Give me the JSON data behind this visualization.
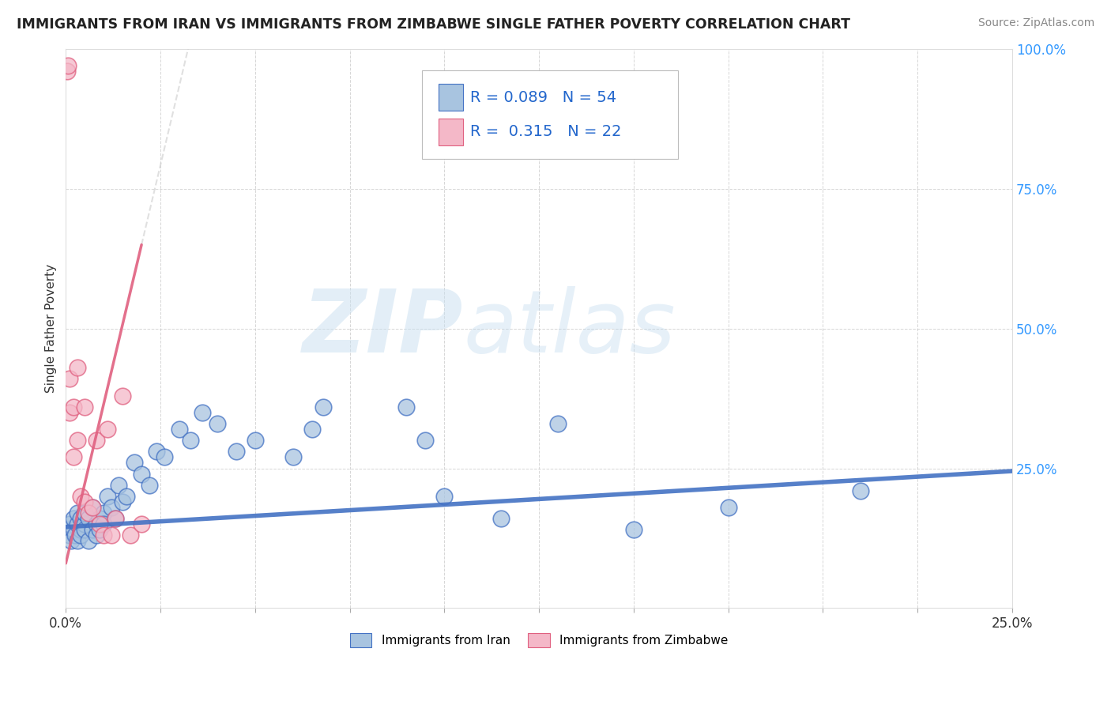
{
  "title": "IMMIGRANTS FROM IRAN VS IMMIGRANTS FROM ZIMBABWE SINGLE FATHER POVERTY CORRELATION CHART",
  "source": "Source: ZipAtlas.com",
  "ylabel": "Single Father Poverty",
  "legend_bottom": [
    "Immigrants from Iran",
    "Immigrants from Zimbabwe"
  ],
  "iran_R": 0.089,
  "iran_N": 54,
  "zimbabwe_R": 0.315,
  "zimbabwe_N": 22,
  "iran_color": "#a8c4e0",
  "iran_line_color": "#4472c4",
  "zimbabwe_color": "#f4b8c8",
  "zimbabwe_line_color": "#e06080",
  "background_color": "#ffffff",
  "grid_color": "#cccccc",
  "iran_x": [
    0.0005,
    0.001,
    0.001,
    0.0015,
    0.002,
    0.002,
    0.0025,
    0.003,
    0.003,
    0.003,
    0.004,
    0.004,
    0.004,
    0.005,
    0.005,
    0.005,
    0.006,
    0.006,
    0.007,
    0.007,
    0.008,
    0.008,
    0.009,
    0.009,
    0.01,
    0.01,
    0.011,
    0.012,
    0.013,
    0.014,
    0.015,
    0.016,
    0.018,
    0.02,
    0.022,
    0.024,
    0.026,
    0.03,
    0.033,
    0.036,
    0.04,
    0.045,
    0.05,
    0.06,
    0.065,
    0.068,
    0.09,
    0.095,
    0.1,
    0.115,
    0.13,
    0.15,
    0.175,
    0.21
  ],
  "iran_y": [
    0.14,
    0.13,
    0.15,
    0.12,
    0.14,
    0.16,
    0.13,
    0.15,
    0.12,
    0.17,
    0.14,
    0.16,
    0.13,
    0.15,
    0.17,
    0.14,
    0.12,
    0.16,
    0.14,
    0.18,
    0.15,
    0.13,
    0.16,
    0.14,
    0.17,
    0.15,
    0.2,
    0.18,
    0.16,
    0.22,
    0.19,
    0.2,
    0.26,
    0.24,
    0.22,
    0.28,
    0.27,
    0.32,
    0.3,
    0.35,
    0.33,
    0.28,
    0.3,
    0.27,
    0.32,
    0.36,
    0.36,
    0.3,
    0.2,
    0.16,
    0.33,
    0.14,
    0.18,
    0.21
  ],
  "zimbabwe_x": [
    0.0003,
    0.0005,
    0.001,
    0.001,
    0.002,
    0.002,
    0.003,
    0.003,
    0.004,
    0.005,
    0.005,
    0.006,
    0.007,
    0.008,
    0.009,
    0.01,
    0.011,
    0.012,
    0.013,
    0.015,
    0.017,
    0.02
  ],
  "zimbabwe_y": [
    0.96,
    0.97,
    0.35,
    0.41,
    0.27,
    0.36,
    0.43,
    0.3,
    0.2,
    0.36,
    0.19,
    0.17,
    0.18,
    0.3,
    0.15,
    0.13,
    0.32,
    0.13,
    0.16,
    0.38,
    0.13,
    0.15
  ],
  "xlim": [
    0.0,
    0.25
  ],
  "ylim": [
    0.0,
    1.0
  ],
  "ytick_values": [
    0.0,
    0.25,
    0.5,
    0.75,
    1.0
  ],
  "right_ytick_labels": [
    "100.0%",
    "75.0%",
    "50.0%",
    "25.0%",
    ""
  ],
  "iran_trendline_x": [
    0.0,
    0.25
  ],
  "iran_trendline_y": [
    0.145,
    0.245
  ],
  "zimbabwe_trendline_x": [
    0.0,
    0.02
  ],
  "zimbabwe_trendline_y": [
    0.08,
    0.65
  ]
}
